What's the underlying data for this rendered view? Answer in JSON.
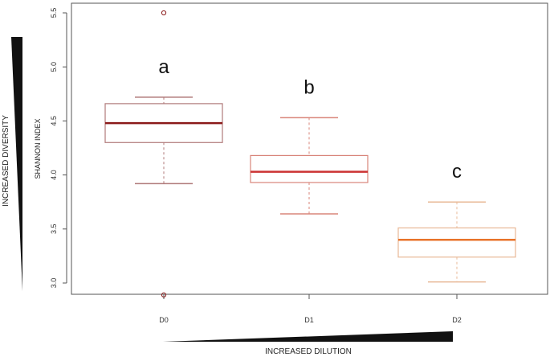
{
  "chart_data": {
    "type": "box",
    "ylabel": "SHANNON INDEX",
    "categories": [
      "D0",
      "D1",
      "D2"
    ],
    "ylim": [
      2.85,
      5.55
    ],
    "yticks": [
      "3.0",
      "3.5",
      "4.0",
      "4.5",
      "5.0",
      "5.5"
    ],
    "grid": false,
    "boxes": [
      {
        "category": "D0",
        "min": 3.92,
        "q1": 4.3,
        "median": 4.48,
        "q3": 4.66,
        "max": 4.72,
        "outliers": [
          5.5,
          2.89
        ],
        "letter": "a",
        "color": "#8b1a1a",
        "box_color": "#b07a7a"
      },
      {
        "category": "D1",
        "min": 3.64,
        "q1": 3.93,
        "median": 4.03,
        "q3": 4.18,
        "max": 4.53,
        "outliers": [],
        "letter": "b",
        "color": "#cc3333",
        "box_color": "#d9857a"
      },
      {
        "category": "D2",
        "min": 3.01,
        "q1": 3.24,
        "median": 3.4,
        "q3": 3.51,
        "max": 3.75,
        "outliers": [],
        "letter": "c",
        "color": "#e8732a",
        "box_color": "#e8b896"
      }
    ],
    "annotations": {
      "left_wedge_label": "INCREASED DIVERSITY",
      "bottom_wedge_label": "INCREASED DILUTION"
    }
  }
}
